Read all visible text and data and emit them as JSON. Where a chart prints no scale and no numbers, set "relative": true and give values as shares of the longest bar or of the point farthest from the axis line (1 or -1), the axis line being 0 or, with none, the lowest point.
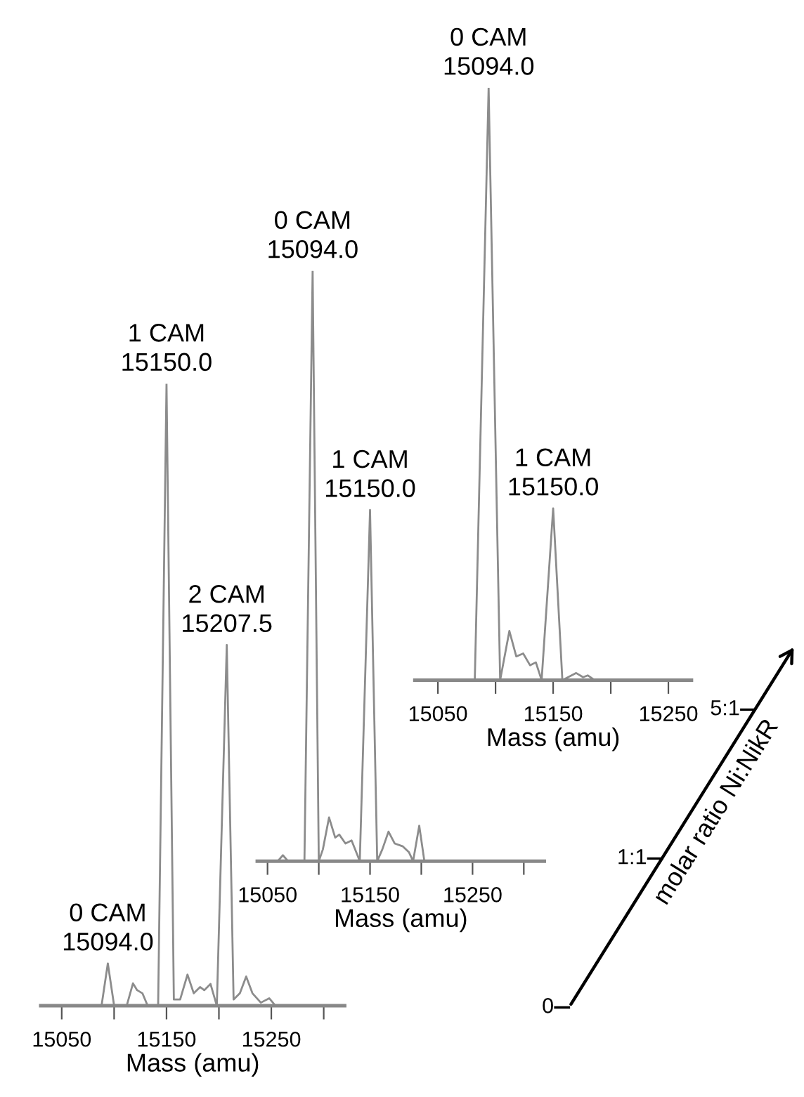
{
  "chart_data": [
    {
      "type": "line",
      "relative": true,
      "xlabel": "Mass (amu)",
      "xlim": [
        15030,
        15320
      ],
      "xticks": [
        15050,
        {
          "value": 15100,
          "label": null
        },
        15150,
        {
          "value": 15200,
          "label": null
        },
        15250,
        {
          "value": 15300,
          "label": null
        }
      ],
      "grid": false,
      "legend": false,
      "series": [
        {
          "color": "#8c8c8c",
          "x": [
            15030,
            15088,
            15094,
            15100,
            15112,
            15118,
            15122,
            15127,
            15132,
            15142,
            15150,
            15157,
            15163,
            15170,
            15176,
            15182,
            15186,
            15192,
            15198,
            15207.5,
            15214,
            15220,
            15226,
            15232,
            15240,
            15248,
            15254,
            15320
          ],
          "values": [
            0,
            0,
            0.068,
            0,
            0,
            0.036,
            0.025,
            0.02,
            0,
            0,
            1,
            0.01,
            0.01,
            0.05,
            0.02,
            0.03,
            0.025,
            0.035,
            0,
            0.58,
            0.01,
            0.02,
            0.047,
            0.02,
            0.005,
            0.012,
            0,
            0
          ]
        }
      ],
      "annotations": [
        {
          "text": "0 CAM\n15094.0",
          "x": 15094,
          "y": 0.068
        },
        {
          "text": "1 CAM\n15150.0",
          "x": 15150,
          "y": 1
        },
        {
          "text": "2 CAM\n15207.5",
          "x": 15207.5,
          "y": 0.58
        }
      ]
    },
    {
      "type": "line",
      "relative": true,
      "xlabel": "Mass (amu)",
      "xlim": [
        15040,
        15320
      ],
      "xticks": [
        15050,
        {
          "value": 15100,
          "label": null
        },
        15150,
        {
          "value": 15200,
          "label": null
        },
        15250,
        {
          "value": 15300,
          "label": null
        }
      ],
      "grid": false,
      "legend": false,
      "series": [
        {
          "color": "#8c8c8c",
          "x": [
            15040,
            15060,
            15065,
            15070,
            15086,
            15094,
            15100,
            15104,
            15110,
            15116,
            15120,
            15126,
            15132,
            15140,
            15150,
            15157,
            15162,
            15168,
            15174,
            15182,
            15188,
            15192,
            15198,
            15203,
            15320
          ],
          "values": [
            0,
            0,
            0.01,
            0,
            0,
            1,
            0,
            0.02,
            0.074,
            0.04,
            0.045,
            0.03,
            0.035,
            0,
            0.595,
            0,
            0.02,
            0.05,
            0.03,
            0.025,
            0.015,
            0,
            0.06,
            0,
            0
          ]
        }
      ],
      "annotations": [
        {
          "text": "0 CAM\n15094.0",
          "x": 15094,
          "y": 1
        },
        {
          "text": "1 CAM\n15150.0",
          "x": 15150,
          "y": 0.595
        }
      ]
    },
    {
      "type": "line",
      "relative": true,
      "xlabel": "Mass (amu)",
      "xlim": [
        15030,
        15270
      ],
      "xticks": [
        15050,
        {
          "value": 15100,
          "label": null
        },
        15150,
        {
          "value": 15200,
          "label": null
        },
        15250
      ],
      "grid": false,
      "legend": false,
      "series": [
        {
          "color": "#8c8c8c",
          "x": [
            15030,
            15082,
            15094,
            15104,
            15112,
            15118,
            15124,
            15130,
            15135,
            15140,
            15150,
            15158,
            15170,
            15176,
            15180,
            15186,
            15270
          ],
          "values": [
            0,
            0,
            1,
            0,
            0.083,
            0.04,
            0.045,
            0.025,
            0.03,
            0,
            0.29,
            0,
            0.012,
            0.005,
            0.008,
            0,
            0
          ]
        }
      ],
      "annotations": [
        {
          "text": "0 CAM\n15094.0",
          "x": 15094,
          "y": 1
        },
        {
          "text": "1 CAM\n15150.0",
          "x": 15150,
          "y": 0.29
        }
      ]
    },
    {
      "type": "other",
      "xlabel": "molar ratio Ni:NikR",
      "annotations": [
        "0",
        "1:1",
        "5:1"
      ]
    }
  ]
}
